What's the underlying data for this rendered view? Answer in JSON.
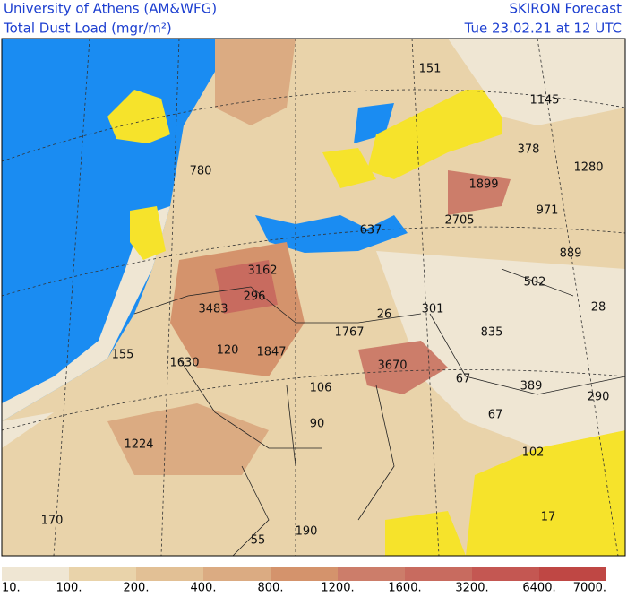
{
  "header": {
    "left": [
      "University of Athens (AM&WFG)",
      "Total Dust Load (mgr/m²)"
    ],
    "right": [
      "SKIRON Forecast",
      "Tue 23.02.21 at 12 UTC"
    ]
  },
  "map_labels": [
    "151",
    "1145",
    "378",
    "1280",
    "780",
    "1899",
    "971",
    "2705",
    "637",
    "889",
    "502",
    "3162",
    "296",
    "3483",
    "28",
    "26",
    "301",
    "1767",
    "835",
    "155",
    "1630",
    "120",
    "1847",
    "3670",
    "67",
    "389",
    "290",
    "106",
    "67",
    "90",
    "1224",
    "102",
    "170",
    "17",
    "55",
    "190"
  ],
  "colorbar": {
    "labels": [
      "10.",
      "100.",
      "200.",
      "400.",
      "800.",
      "1200.",
      "1600.",
      "3200.",
      "6400.",
      "7000."
    ],
    "colors": [
      "#efe6d3",
      "#e9d3aa",
      "#e2c095",
      "#dbab82",
      "#d4936c",
      "#cc7d6a",
      "#c86b5f",
      "#c45752",
      "#bf4744"
    ]
  }
}
